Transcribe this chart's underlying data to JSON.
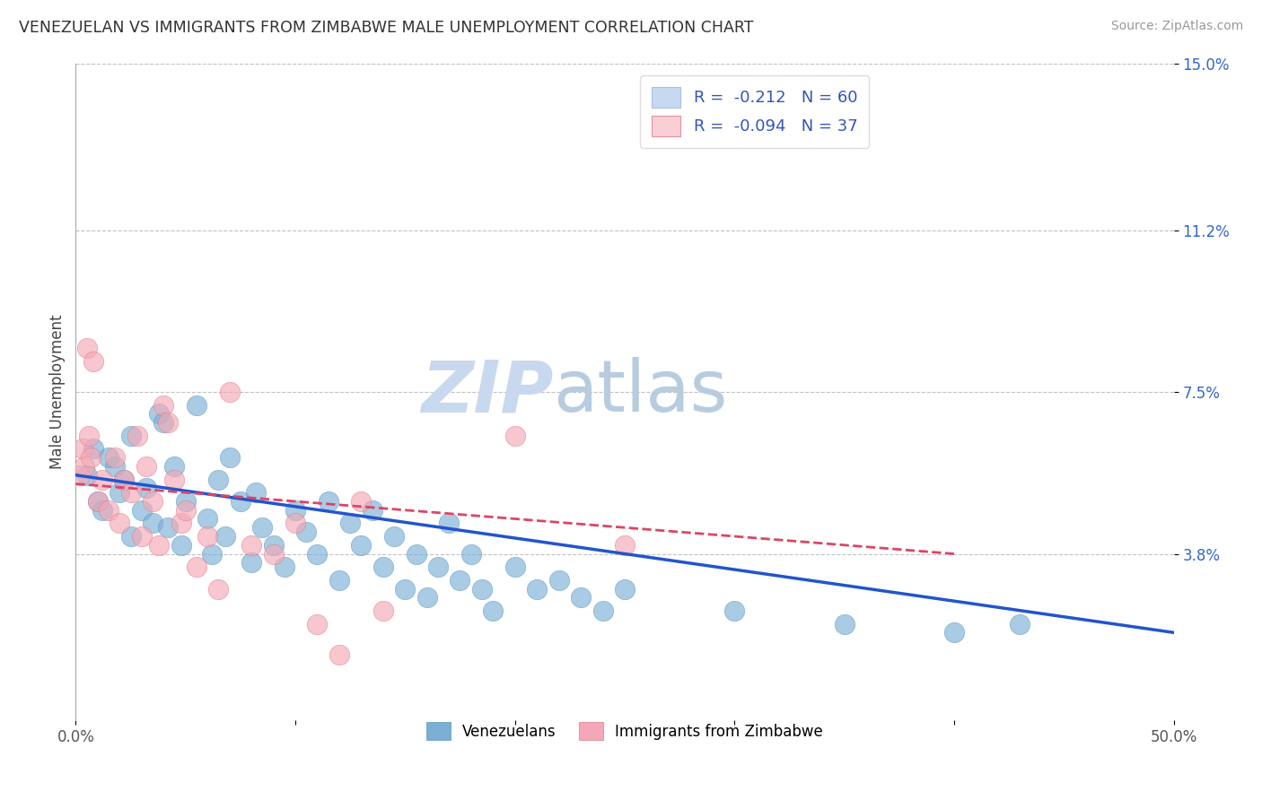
{
  "title": "VENEZUELAN VS IMMIGRANTS FROM ZIMBABWE MALE UNEMPLOYMENT CORRELATION CHART",
  "source": "Source: ZipAtlas.com",
  "ylabel": "Male Unemployment",
  "xlim": [
    0.0,
    0.5
  ],
  "ylim": [
    0.0,
    0.15
  ],
  "yticks": [
    0.038,
    0.075,
    0.112,
    0.15
  ],
  "ytick_labels": [
    "3.8%",
    "7.5%",
    "11.2%",
    "15.0%"
  ],
  "xticks": [
    0.0,
    0.1,
    0.2,
    0.3,
    0.4,
    0.5
  ],
  "xtick_labels": [
    "0.0%",
    "",
    "",
    "",
    "",
    "50.0%"
  ],
  "legend_entries": [
    {
      "label": "R =  -0.212   N = 60",
      "facecolor": "#c5d9f0"
    },
    {
      "label": "R =  -0.094   N = 37",
      "facecolor": "#f9cfd5"
    }
  ],
  "venezuelan_color": "#7bafd4",
  "venezuelan_edge": "#5a96c5",
  "zimbabwe_color": "#f4a8b5",
  "zimbabwe_edge": "#e07888",
  "trend_venezuelan": "#2255cc",
  "trend_zimbabwe": "#dd4466",
  "venezuelan_x": [
    0.005,
    0.008,
    0.01,
    0.012,
    0.015,
    0.018,
    0.02,
    0.022,
    0.025,
    0.025,
    0.03,
    0.032,
    0.035,
    0.038,
    0.04,
    0.042,
    0.045,
    0.048,
    0.05,
    0.055,
    0.06,
    0.062,
    0.065,
    0.068,
    0.07,
    0.075,
    0.08,
    0.082,
    0.085,
    0.09,
    0.095,
    0.1,
    0.105,
    0.11,
    0.115,
    0.12,
    0.125,
    0.13,
    0.135,
    0.14,
    0.145,
    0.15,
    0.155,
    0.16,
    0.165,
    0.17,
    0.175,
    0.18,
    0.185,
    0.19,
    0.2,
    0.21,
    0.22,
    0.23,
    0.24,
    0.25,
    0.3,
    0.35,
    0.4,
    0.43
  ],
  "venezuelan_y": [
    0.056,
    0.062,
    0.05,
    0.048,
    0.06,
    0.058,
    0.052,
    0.055,
    0.065,
    0.042,
    0.048,
    0.053,
    0.045,
    0.07,
    0.068,
    0.044,
    0.058,
    0.04,
    0.05,
    0.072,
    0.046,
    0.038,
    0.055,
    0.042,
    0.06,
    0.05,
    0.036,
    0.052,
    0.044,
    0.04,
    0.035,
    0.048,
    0.043,
    0.038,
    0.05,
    0.032,
    0.045,
    0.04,
    0.048,
    0.035,
    0.042,
    0.03,
    0.038,
    0.028,
    0.035,
    0.045,
    0.032,
    0.038,
    0.03,
    0.025,
    0.035,
    0.03,
    0.032,
    0.028,
    0.025,
    0.03,
    0.025,
    0.022,
    0.02,
    0.022
  ],
  "zimbabwe_x": [
    0.002,
    0.003,
    0.004,
    0.005,
    0.006,
    0.007,
    0.008,
    0.01,
    0.012,
    0.015,
    0.018,
    0.02,
    0.022,
    0.025,
    0.028,
    0.03,
    0.032,
    0.035,
    0.038,
    0.04,
    0.042,
    0.045,
    0.048,
    0.05,
    0.055,
    0.06,
    0.065,
    0.07,
    0.08,
    0.09,
    0.1,
    0.11,
    0.12,
    0.13,
    0.14,
    0.2,
    0.25
  ],
  "zimbabwe_y": [
    0.056,
    0.062,
    0.058,
    0.085,
    0.065,
    0.06,
    0.082,
    0.05,
    0.055,
    0.048,
    0.06,
    0.045,
    0.055,
    0.052,
    0.065,
    0.042,
    0.058,
    0.05,
    0.04,
    0.072,
    0.068,
    0.055,
    0.045,
    0.048,
    0.035,
    0.042,
    0.03,
    0.075,
    0.04,
    0.038,
    0.045,
    0.022,
    0.015,
    0.05,
    0.025,
    0.065,
    0.04
  ],
  "background_color": "#ffffff",
  "grid_color": "#bbbbbb",
  "watermark_zip": "ZIP",
  "watermark_atlas": "atlas",
  "watermark_color_zip": "#c8d8ee",
  "watermark_color_atlas": "#b8cce0"
}
